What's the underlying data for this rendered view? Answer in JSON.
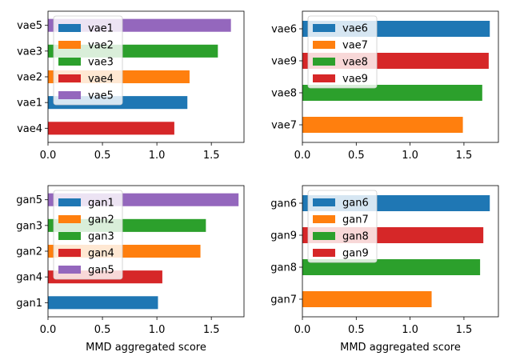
{
  "chart_data": [
    {
      "type": "bar",
      "orientation": "horizontal",
      "categories": [
        "vae4",
        "vae1",
        "vae2",
        "vae3",
        "vae5"
      ],
      "values": [
        1.16,
        1.28,
        1.3,
        1.56,
        1.68
      ],
      "bar_colors": [
        "#d62728",
        "#1f77b4",
        "#ff7f0e",
        "#2ca02c",
        "#9467bd"
      ],
      "xlim": [
        0,
        1.8
      ],
      "xticks": [
        "0.0",
        "0.5",
        "1.0",
        "1.5"
      ],
      "xlabel": "",
      "legend": {
        "placement": "upper-left",
        "entries": [
          {
            "label": "vae1",
            "color": "#1f77b4"
          },
          {
            "label": "vae2",
            "color": "#ff7f0e"
          },
          {
            "label": "vae3",
            "color": "#2ca02c"
          },
          {
            "label": "vae4",
            "color": "#d62728"
          },
          {
            "label": "vae5",
            "color": "#9467bd"
          }
        ]
      }
    },
    {
      "type": "bar",
      "orientation": "horizontal",
      "categories": [
        "vae7",
        "vae8",
        "vae9",
        "vae6"
      ],
      "values": [
        1.49,
        1.67,
        1.73,
        1.74
      ],
      "bar_colors": [
        "#ff7f0e",
        "#2ca02c",
        "#d62728",
        "#1f77b4"
      ],
      "xlim": [
        0,
        1.82
      ],
      "xticks": [
        "0.0",
        "0.5",
        "1.0",
        "1.5"
      ],
      "xlabel": "",
      "legend": {
        "placement": "upper-left",
        "entries": [
          {
            "label": "vae6",
            "color": "#1f77b4"
          },
          {
            "label": "vae7",
            "color": "#ff7f0e"
          },
          {
            "label": "vae8",
            "color": "#2ca02c"
          },
          {
            "label": "vae9",
            "color": "#d62728"
          }
        ]
      }
    },
    {
      "type": "bar",
      "orientation": "horizontal",
      "categories": [
        "gan1",
        "gan4",
        "gan2",
        "gan3",
        "gan5"
      ],
      "values": [
        1.01,
        1.05,
        1.4,
        1.45,
        1.75
      ],
      "bar_colors": [
        "#1f77b4",
        "#d62728",
        "#ff7f0e",
        "#2ca02c",
        "#9467bd"
      ],
      "xlim": [
        0,
        1.8
      ],
      "xticks": [
        "0.0",
        "0.5",
        "1.0",
        "1.5"
      ],
      "xlabel": "MMD aggregated score",
      "legend": {
        "placement": "upper-left",
        "entries": [
          {
            "label": "gan1",
            "color": "#1f77b4"
          },
          {
            "label": "gan2",
            "color": "#ff7f0e"
          },
          {
            "label": "gan3",
            "color": "#2ca02c"
          },
          {
            "label": "gan4",
            "color": "#d62728"
          },
          {
            "label": "gan5",
            "color": "#9467bd"
          }
        ]
      }
    },
    {
      "type": "bar",
      "orientation": "horizontal",
      "categories": [
        "gan7",
        "gan8",
        "gan9",
        "gan6"
      ],
      "values": [
        1.2,
        1.65,
        1.68,
        1.74
      ],
      "bar_colors": [
        "#ff7f0e",
        "#2ca02c",
        "#d62728",
        "#1f77b4"
      ],
      "xlim": [
        0,
        1.82
      ],
      "xticks": [
        "0.0",
        "0.5",
        "1.0",
        "1.5"
      ],
      "xlabel": "MMD aggregated score",
      "legend": {
        "placement": "upper-left",
        "entries": [
          {
            "label": "gan6",
            "color": "#1f77b4"
          },
          {
            "label": "gan7",
            "color": "#ff7f0e"
          },
          {
            "label": "gan8",
            "color": "#2ca02c"
          },
          {
            "label": "gan9",
            "color": "#d62728"
          }
        ]
      }
    }
  ]
}
